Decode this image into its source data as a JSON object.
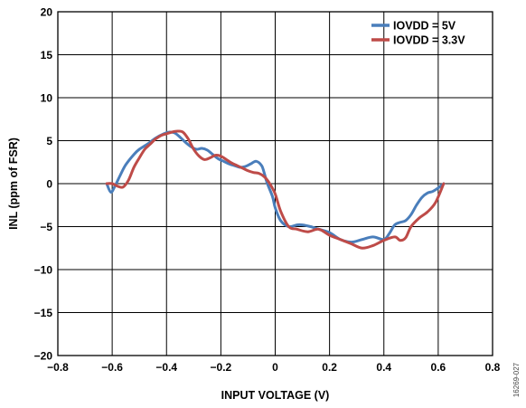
{
  "chart_data": {
    "type": "line",
    "xlabel": "INPUT VOLTAGE (V)",
    "ylabel": "INL (ppm of FSR)",
    "xlim": [
      -0.8,
      0.8
    ],
    "ylim": [
      -20,
      20
    ],
    "xticks": [
      -0.8,
      -0.6,
      -0.4,
      -0.2,
      0,
      0.2,
      0.4,
      0.6,
      0.8
    ],
    "xtick_labels": [
      "−0.8",
      "−0.6",
      "−0.4",
      "−0.2",
      "0",
      "0.2",
      "0.4",
      "0.6",
      "0.8"
    ],
    "yticks": [
      20,
      15,
      10,
      5,
      0,
      -5,
      -10,
      -15,
      -20
    ],
    "ytick_labels": [
      "20",
      "15",
      "10",
      "5",
      "0",
      "−5",
      "−10",
      "−15",
      "−20"
    ],
    "grid": true,
    "legend_position": "top-right",
    "figure_id": "16269-027",
    "series": [
      {
        "name": "IOVDD = 5V",
        "color": "#4a7ebb",
        "x": [
          -0.62,
          -0.605,
          -0.59,
          -0.57,
          -0.55,
          -0.52,
          -0.5,
          -0.47,
          -0.44,
          -0.41,
          -0.39,
          -0.37,
          -0.35,
          -0.33,
          -0.31,
          -0.29,
          -0.27,
          -0.25,
          -0.23,
          -0.21,
          -0.19,
          -0.17,
          -0.15,
          -0.13,
          -0.11,
          -0.09,
          -0.07,
          -0.05,
          -0.04,
          -0.03,
          -0.01,
          0.0,
          0.02,
          0.05,
          0.08,
          0.1,
          0.13,
          0.16,
          0.2,
          0.24,
          0.28,
          0.32,
          0.36,
          0.4,
          0.42,
          0.44,
          0.46,
          0.48,
          0.5,
          0.52,
          0.54,
          0.56,
          0.58,
          0.6,
          0.62
        ],
        "y": [
          0,
          -1,
          -0.3,
          1.0,
          2.2,
          3.4,
          4.0,
          4.6,
          5.3,
          5.8,
          6.0,
          5.9,
          5.4,
          4.8,
          4.3,
          4.0,
          4.1,
          3.9,
          3.4,
          2.9,
          2.6,
          2.3,
          2.1,
          1.9,
          2.0,
          2.3,
          2.6,
          2.1,
          1.2,
          0.1,
          -1.5,
          -2.8,
          -4.3,
          -5.0,
          -4.8,
          -4.8,
          -5.0,
          -5.3,
          -5.7,
          -6.5,
          -6.8,
          -6.5,
          -6.2,
          -6.5,
          -5.8,
          -4.8,
          -4.5,
          -4.3,
          -3.6,
          -2.5,
          -1.6,
          -1.1,
          -0.9,
          -0.5,
          0
        ]
      },
      {
        "name": "IOVDD = 3.3V",
        "color": "#be4b48",
        "x": [
          -0.62,
          -0.6,
          -0.58,
          -0.56,
          -0.54,
          -0.52,
          -0.5,
          -0.48,
          -0.46,
          -0.44,
          -0.42,
          -0.4,
          -0.38,
          -0.36,
          -0.34,
          -0.32,
          -0.3,
          -0.28,
          -0.26,
          -0.24,
          -0.22,
          -0.2,
          -0.18,
          -0.16,
          -0.14,
          -0.12,
          -0.1,
          -0.08,
          -0.06,
          -0.04,
          -0.02,
          0.0,
          0.02,
          0.05,
          0.08,
          0.12,
          0.16,
          0.2,
          0.24,
          0.28,
          0.32,
          0.36,
          0.4,
          0.44,
          0.46,
          0.48,
          0.5,
          0.53,
          0.56,
          0.59,
          0.62
        ],
        "y": [
          0,
          0,
          -0.3,
          -0.4,
          0.4,
          1.9,
          3.0,
          4.0,
          4.6,
          5.2,
          5.6,
          5.8,
          6.0,
          6.1,
          6.0,
          5.2,
          4.0,
          3.2,
          2.8,
          3.0,
          3.3,
          3.2,
          2.8,
          2.4,
          2.1,
          1.8,
          1.5,
          1.3,
          1.2,
          0.8,
          0.0,
          -1.2,
          -3.2,
          -5.0,
          -5.3,
          -5.6,
          -5.3,
          -6.0,
          -6.5,
          -7.0,
          -7.5,
          -7.2,
          -6.6,
          -6.2,
          -6.6,
          -6.3,
          -5.0,
          -4.0,
          -3.3,
          -2.2,
          0
        ]
      }
    ]
  }
}
